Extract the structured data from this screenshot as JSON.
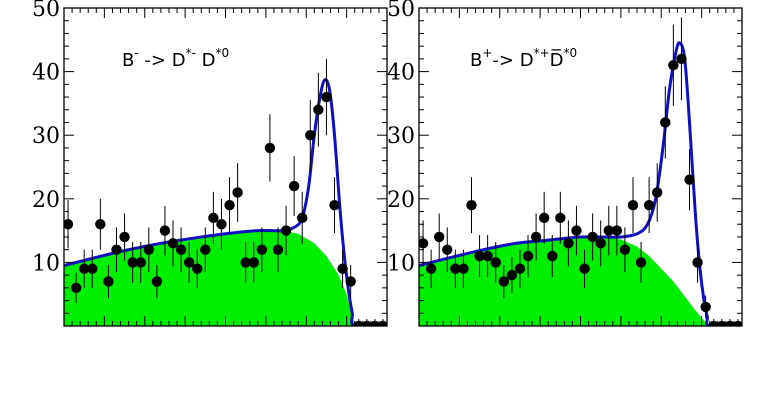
{
  "chart_data": [
    {
      "type": "scatter",
      "title_parts": [
        {
          "t": "B",
          "sup": false
        },
        {
          "t": "-",
          "sup": true
        },
        {
          "t": " -> D",
          "sup": false
        },
        {
          "t": "*-",
          "sup": true
        },
        {
          "t": " D",
          "sup": false
        },
        {
          "t": "*0",
          "sup": true
        }
      ],
      "ylim": [
        0,
        50
      ],
      "yticks": [
        "10",
        "20",
        "30",
        "40",
        "50"
      ],
      "xlim": [
        0,
        40
      ],
      "background_color": "#00ee00",
      "fit_color": "#1010c0",
      "points": [
        {
          "x": 0.5,
          "y": 16,
          "e": 3.8
        },
        {
          "x": 1.5,
          "y": 6,
          "e": 2.4
        },
        {
          "x": 2.5,
          "y": 9,
          "e": 3.0
        },
        {
          "x": 3.5,
          "y": 9,
          "e": 3.0
        },
        {
          "x": 4.5,
          "y": 16,
          "e": 4.0
        },
        {
          "x": 5.5,
          "y": 7,
          "e": 2.6
        },
        {
          "x": 6.5,
          "y": 12,
          "e": 3.5
        },
        {
          "x": 7.5,
          "y": 14,
          "e": 3.7
        },
        {
          "x": 8.5,
          "y": 10,
          "e": 3.2
        },
        {
          "x": 9.5,
          "y": 10,
          "e": 3.2
        },
        {
          "x": 10.5,
          "y": 12,
          "e": 3.5
        },
        {
          "x": 11.5,
          "y": 7,
          "e": 2.6
        },
        {
          "x": 12.5,
          "y": 15,
          "e": 3.9
        },
        {
          "x": 13.5,
          "y": 13,
          "e": 3.6
        },
        {
          "x": 14.5,
          "y": 12,
          "e": 3.5
        },
        {
          "x": 15.5,
          "y": 10,
          "e": 3.2
        },
        {
          "x": 16.5,
          "y": 9,
          "e": 3.0
        },
        {
          "x": 17.5,
          "y": 12,
          "e": 3.5
        },
        {
          "x": 18.5,
          "y": 17,
          "e": 4.1
        },
        {
          "x": 19.5,
          "y": 16,
          "e": 4.0
        },
        {
          "x": 20.5,
          "y": 19,
          "e": 4.4
        },
        {
          "x": 21.5,
          "y": 21,
          "e": 4.6
        },
        {
          "x": 22.5,
          "y": 10,
          "e": 3.2
        },
        {
          "x": 23.5,
          "y": 10,
          "e": 3.2
        },
        {
          "x": 24.5,
          "y": 12,
          "e": 3.5
        },
        {
          "x": 25.5,
          "y": 28,
          "e": 5.3
        },
        {
          "x": 26.5,
          "y": 12,
          "e": 3.5
        },
        {
          "x": 27.5,
          "y": 15,
          "e": 3.9
        },
        {
          "x": 28.5,
          "y": 22,
          "e": 4.7
        },
        {
          "x": 29.5,
          "y": 17,
          "e": 4.1
        },
        {
          "x": 30.5,
          "y": 30,
          "e": 5.5
        },
        {
          "x": 31.5,
          "y": 34,
          "e": 5.8
        },
        {
          "x": 32.5,
          "y": 36,
          "e": 6.0
        },
        {
          "x": 33.5,
          "y": 19,
          "e": 4.4
        },
        {
          "x": 34.5,
          "y": 9,
          "e": 3.0
        },
        {
          "x": 35.5,
          "y": 7,
          "e": 2.6
        },
        {
          "x": 36.5,
          "y": 0,
          "e": 1.1
        },
        {
          "x": 37.5,
          "y": 0,
          "e": 1.1
        },
        {
          "x": 38.5,
          "y": 0,
          "e": 1.1
        },
        {
          "x": 39.5,
          "y": 0,
          "e": 1.1
        }
      ],
      "background_curve": [
        [
          0,
          9.5
        ],
        [
          4,
          10.8
        ],
        [
          8,
          12
        ],
        [
          12,
          13
        ],
        [
          16,
          13.8
        ],
        [
          20,
          14.5
        ],
        [
          24,
          15
        ],
        [
          27,
          15
        ],
        [
          29,
          14.5
        ],
        [
          31,
          13
        ],
        [
          32.5,
          11
        ],
        [
          34,
          8
        ],
        [
          35,
          5
        ],
        [
          35.6,
          2
        ],
        [
          36,
          0
        ]
      ],
      "fit_curve": [
        [
          0,
          9.5
        ],
        [
          4,
          10.8
        ],
        [
          8,
          12
        ],
        [
          12,
          13
        ],
        [
          16,
          13.8
        ],
        [
          20,
          14.5
        ],
        [
          24,
          15
        ],
        [
          27,
          15
        ],
        [
          28.5,
          15.5
        ],
        [
          29.5,
          17
        ],
        [
          30.3,
          22
        ],
        [
          31,
          30
        ],
        [
          31.7,
          36
        ],
        [
          32.3,
          38.7
        ],
        [
          32.9,
          37
        ],
        [
          33.5,
          30
        ],
        [
          34.2,
          18
        ],
        [
          34.8,
          10
        ],
        [
          35.3,
          5
        ],
        [
          35.7,
          2
        ],
        [
          36,
          0
        ],
        [
          40,
          0
        ]
      ]
    },
    {
      "type": "scatter",
      "title_parts": [
        {
          "t": "B",
          "sup": false
        },
        {
          "t": "+",
          "sup": true
        },
        {
          "t": "-> D",
          "sup": false
        },
        {
          "t": "*+",
          "sup": true
        },
        {
          "t": "D̅",
          "sup": false
        },
        {
          "t": "*0",
          "sup": true
        }
      ],
      "ylim": [
        0,
        50
      ],
      "yticks": [
        "10",
        "20",
        "30",
        "40",
        "50"
      ],
      "xlim": [
        0,
        40
      ],
      "background_color": "#00ee00",
      "fit_color": "#1010c0",
      "points": [
        {
          "x": 0.5,
          "y": 13,
          "e": 3.6
        },
        {
          "x": 1.5,
          "y": 9,
          "e": 3.0
        },
        {
          "x": 2.5,
          "y": 14,
          "e": 3.7
        },
        {
          "x": 3.5,
          "y": 12,
          "e": 3.5
        },
        {
          "x": 4.5,
          "y": 9,
          "e": 3.0
        },
        {
          "x": 5.5,
          "y": 9,
          "e": 3.0
        },
        {
          "x": 6.5,
          "y": 19,
          "e": 4.4
        },
        {
          "x": 7.5,
          "y": 11,
          "e": 3.3
        },
        {
          "x": 8.5,
          "y": 11,
          "e": 3.3
        },
        {
          "x": 9.5,
          "y": 10,
          "e": 3.2
        },
        {
          "x": 10.5,
          "y": 7,
          "e": 2.6
        },
        {
          "x": 11.5,
          "y": 8,
          "e": 2.8
        },
        {
          "x": 12.5,
          "y": 9,
          "e": 3.0
        },
        {
          "x": 13.5,
          "y": 11,
          "e": 3.3
        },
        {
          "x": 14.5,
          "y": 14,
          "e": 3.7
        },
        {
          "x": 15.5,
          "y": 17,
          "e": 4.1
        },
        {
          "x": 16.5,
          "y": 11,
          "e": 3.3
        },
        {
          "x": 17.5,
          "y": 17,
          "e": 4.1
        },
        {
          "x": 18.5,
          "y": 13,
          "e": 3.6
        },
        {
          "x": 19.5,
          "y": 15,
          "e": 3.9
        },
        {
          "x": 20.5,
          "y": 9,
          "e": 3.0
        },
        {
          "x": 21.5,
          "y": 14,
          "e": 3.7
        },
        {
          "x": 22.5,
          "y": 13,
          "e": 3.6
        },
        {
          "x": 23.5,
          "y": 15,
          "e": 3.9
        },
        {
          "x": 24.5,
          "y": 15,
          "e": 3.9
        },
        {
          "x": 25.5,
          "y": 12,
          "e": 3.5
        },
        {
          "x": 26.5,
          "y": 19,
          "e": 4.4
        },
        {
          "x": 27.5,
          "y": 10,
          "e": 3.2
        },
        {
          "x": 28.5,
          "y": 19,
          "e": 4.4
        },
        {
          "x": 29.5,
          "y": 21,
          "e": 4.6
        },
        {
          "x": 30.5,
          "y": 32,
          "e": 5.7
        },
        {
          "x": 31.5,
          "y": 41,
          "e": 6.4
        },
        {
          "x": 32.5,
          "y": 42,
          "e": 6.5
        },
        {
          "x": 33.5,
          "y": 23,
          "e": 4.8
        },
        {
          "x": 34.5,
          "y": 10,
          "e": 3.2
        },
        {
          "x": 35.5,
          "y": 3,
          "e": 1.8
        },
        {
          "x": 36.5,
          "y": 0,
          "e": 1.1
        },
        {
          "x": 37.5,
          "y": 0,
          "e": 1.1
        },
        {
          "x": 38.5,
          "y": 0,
          "e": 1.1
        },
        {
          "x": 39.5,
          "y": 0,
          "e": 1.1
        }
      ],
      "background_curve": [
        [
          0,
          9.5
        ],
        [
          4,
          10.8
        ],
        [
          8,
          12
        ],
        [
          12,
          13
        ],
        [
          16,
          13.5
        ],
        [
          20,
          14
        ],
        [
          23,
          14
        ],
        [
          25,
          13.6
        ],
        [
          27,
          12.5
        ],
        [
          28.5,
          11
        ],
        [
          30,
          9
        ],
        [
          31.5,
          7
        ],
        [
          33,
          4.5
        ],
        [
          34.2,
          2.5
        ],
        [
          35.2,
          1
        ],
        [
          36,
          0
        ]
      ],
      "fit_curve": [
        [
          0,
          9.5
        ],
        [
          4,
          10.8
        ],
        [
          8,
          12
        ],
        [
          12,
          13
        ],
        [
          16,
          13.5
        ],
        [
          20,
          14
        ],
        [
          23,
          14
        ],
        [
          25,
          14
        ],
        [
          27,
          14.5
        ],
        [
          28.3,
          16
        ],
        [
          29.3,
          20
        ],
        [
          30.2,
          28
        ],
        [
          31,
          37
        ],
        [
          31.8,
          43
        ],
        [
          32.3,
          44.5
        ],
        [
          32.9,
          42
        ],
        [
          33.5,
          32
        ],
        [
          34.2,
          18
        ],
        [
          34.8,
          9
        ],
        [
          35.3,
          4
        ],
        [
          35.7,
          1.5
        ],
        [
          36,
          0
        ],
        [
          40,
          0
        ]
      ]
    }
  ]
}
